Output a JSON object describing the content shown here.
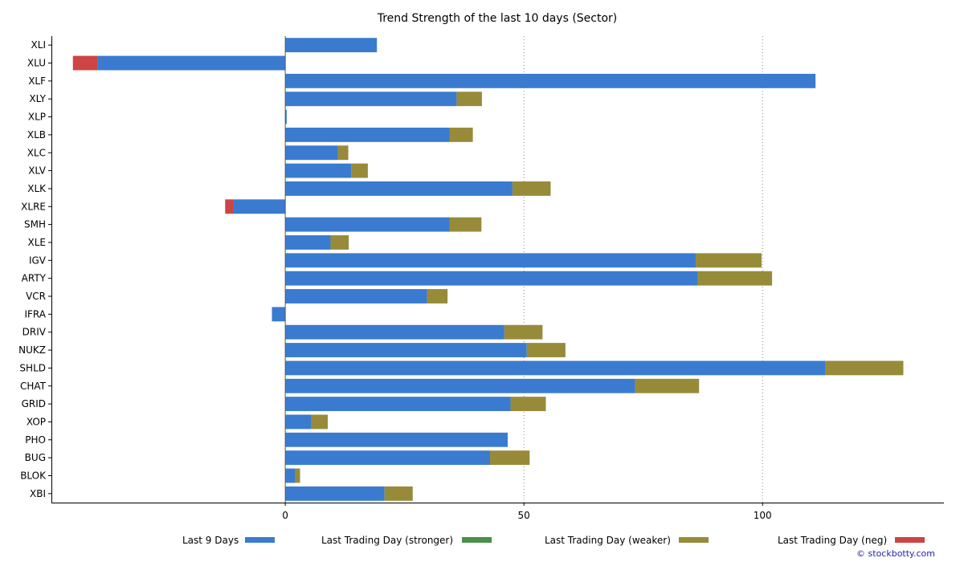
{
  "chart_data": {
    "type": "bar",
    "orientation": "horizontal",
    "stacked": true,
    "title": "Trend Strength of the last 10 days (Sector)",
    "xlabel": "",
    "ylabel": "",
    "xlim": [
      -49,
      138
    ],
    "xticks": [
      0,
      50,
      100
    ],
    "xtick_labels": [
      "0",
      "50",
      "100"
    ],
    "grid": "vertical dotted at ticks",
    "categories": [
      "XLI",
      "XLU",
      "XLF",
      "XLY",
      "XLP",
      "XLB",
      "XLC",
      "XLV",
      "XLK",
      "XLRE",
      "SMH",
      "XLE",
      "IGV",
      "ARTY",
      "VCR",
      "IFRA",
      "DRIV",
      "NUKZ",
      "SHLD",
      "CHAT",
      "GRID",
      "XOP",
      "PHO",
      "BUG",
      "BLOK",
      "XBI"
    ],
    "series": [
      {
        "name": "Last 9 Days",
        "color": "#3a7bd0",
        "values": [
          19.2,
          -39.3,
          111.1,
          35.9,
          0.3,
          34.4,
          11.0,
          13.8,
          47.6,
          -10.8,
          34.4,
          9.5,
          86.0,
          86.4,
          29.7,
          -2.8,
          45.9,
          50.6,
          113.2,
          73.3,
          47.2,
          5.5,
          46.6,
          42.9,
          2.0,
          20.8
        ]
      },
      {
        "name": "Last Trading Day (stronger)",
        "color": "#4a8f4a",
        "values": [
          0,
          0,
          0,
          0,
          0,
          0,
          0,
          0,
          0,
          0,
          0,
          0,
          0,
          0,
          0,
          0,
          0,
          0,
          0,
          0,
          0,
          0,
          0,
          0,
          0,
          0
        ]
      },
      {
        "name": "Last Trading Day (weaker)",
        "color": "#978b3a",
        "values": [
          0,
          0,
          0,
          5.3,
          0,
          4.9,
          2.2,
          3.5,
          8.0,
          0,
          6.7,
          3.8,
          13.8,
          15.6,
          4.3,
          0,
          8.0,
          8.1,
          16.3,
          13.4,
          7.4,
          3.4,
          0,
          8.3,
          1.1,
          5.9
        ]
      },
      {
        "name": "Last Trading Day (neg)",
        "color": "#cc4444",
        "values": [
          0,
          -5.2,
          0,
          0,
          0,
          0,
          0,
          0,
          0,
          -1.8,
          0,
          0,
          0,
          0,
          0,
          0,
          0,
          0,
          0,
          0,
          0,
          0,
          0,
          0,
          0,
          0
        ]
      }
    ],
    "legend_placement": "bottom"
  },
  "credit": "© stockbotty.com"
}
